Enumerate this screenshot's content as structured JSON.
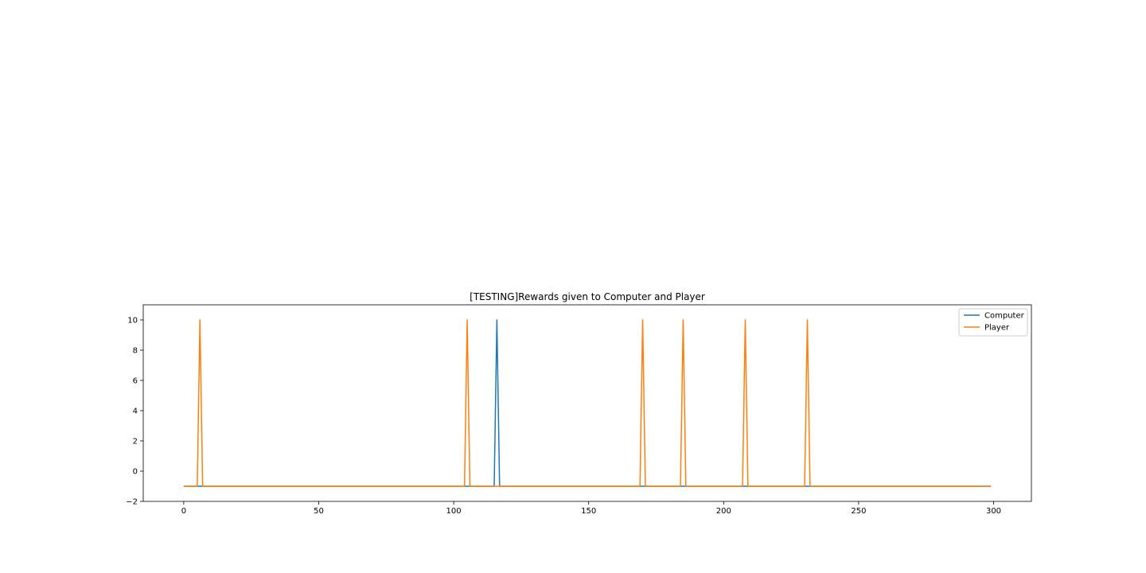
{
  "chart_data": {
    "type": "line",
    "title": "[TESTING]Rewards given to Computer and Player",
    "xlabel": "",
    "ylabel": "",
    "xlim": [
      -15,
      314
    ],
    "ylim": [
      -2,
      11
    ],
    "xticks": [
      0,
      50,
      100,
      150,
      200,
      250,
      300
    ],
    "yticks": [
      -2,
      0,
      2,
      4,
      6,
      8,
      10
    ],
    "x_start": 0,
    "x_end": 299,
    "grid": false,
    "legend_position": "top-right",
    "series": [
      {
        "name": "Computer",
        "color": "#1f77b4",
        "baseline": -1,
        "peaks": [
          {
            "x": 116,
            "y": 10
          }
        ]
      },
      {
        "name": "Player",
        "color": "#ff7f0e",
        "baseline": -1,
        "peaks": [
          {
            "x": 6,
            "y": 10
          },
          {
            "x": 105,
            "y": 10
          },
          {
            "x": 170,
            "y": 10
          },
          {
            "x": 185,
            "y": 10
          },
          {
            "x": 208,
            "y": 10
          },
          {
            "x": 231,
            "y": 10
          }
        ]
      }
    ]
  }
}
